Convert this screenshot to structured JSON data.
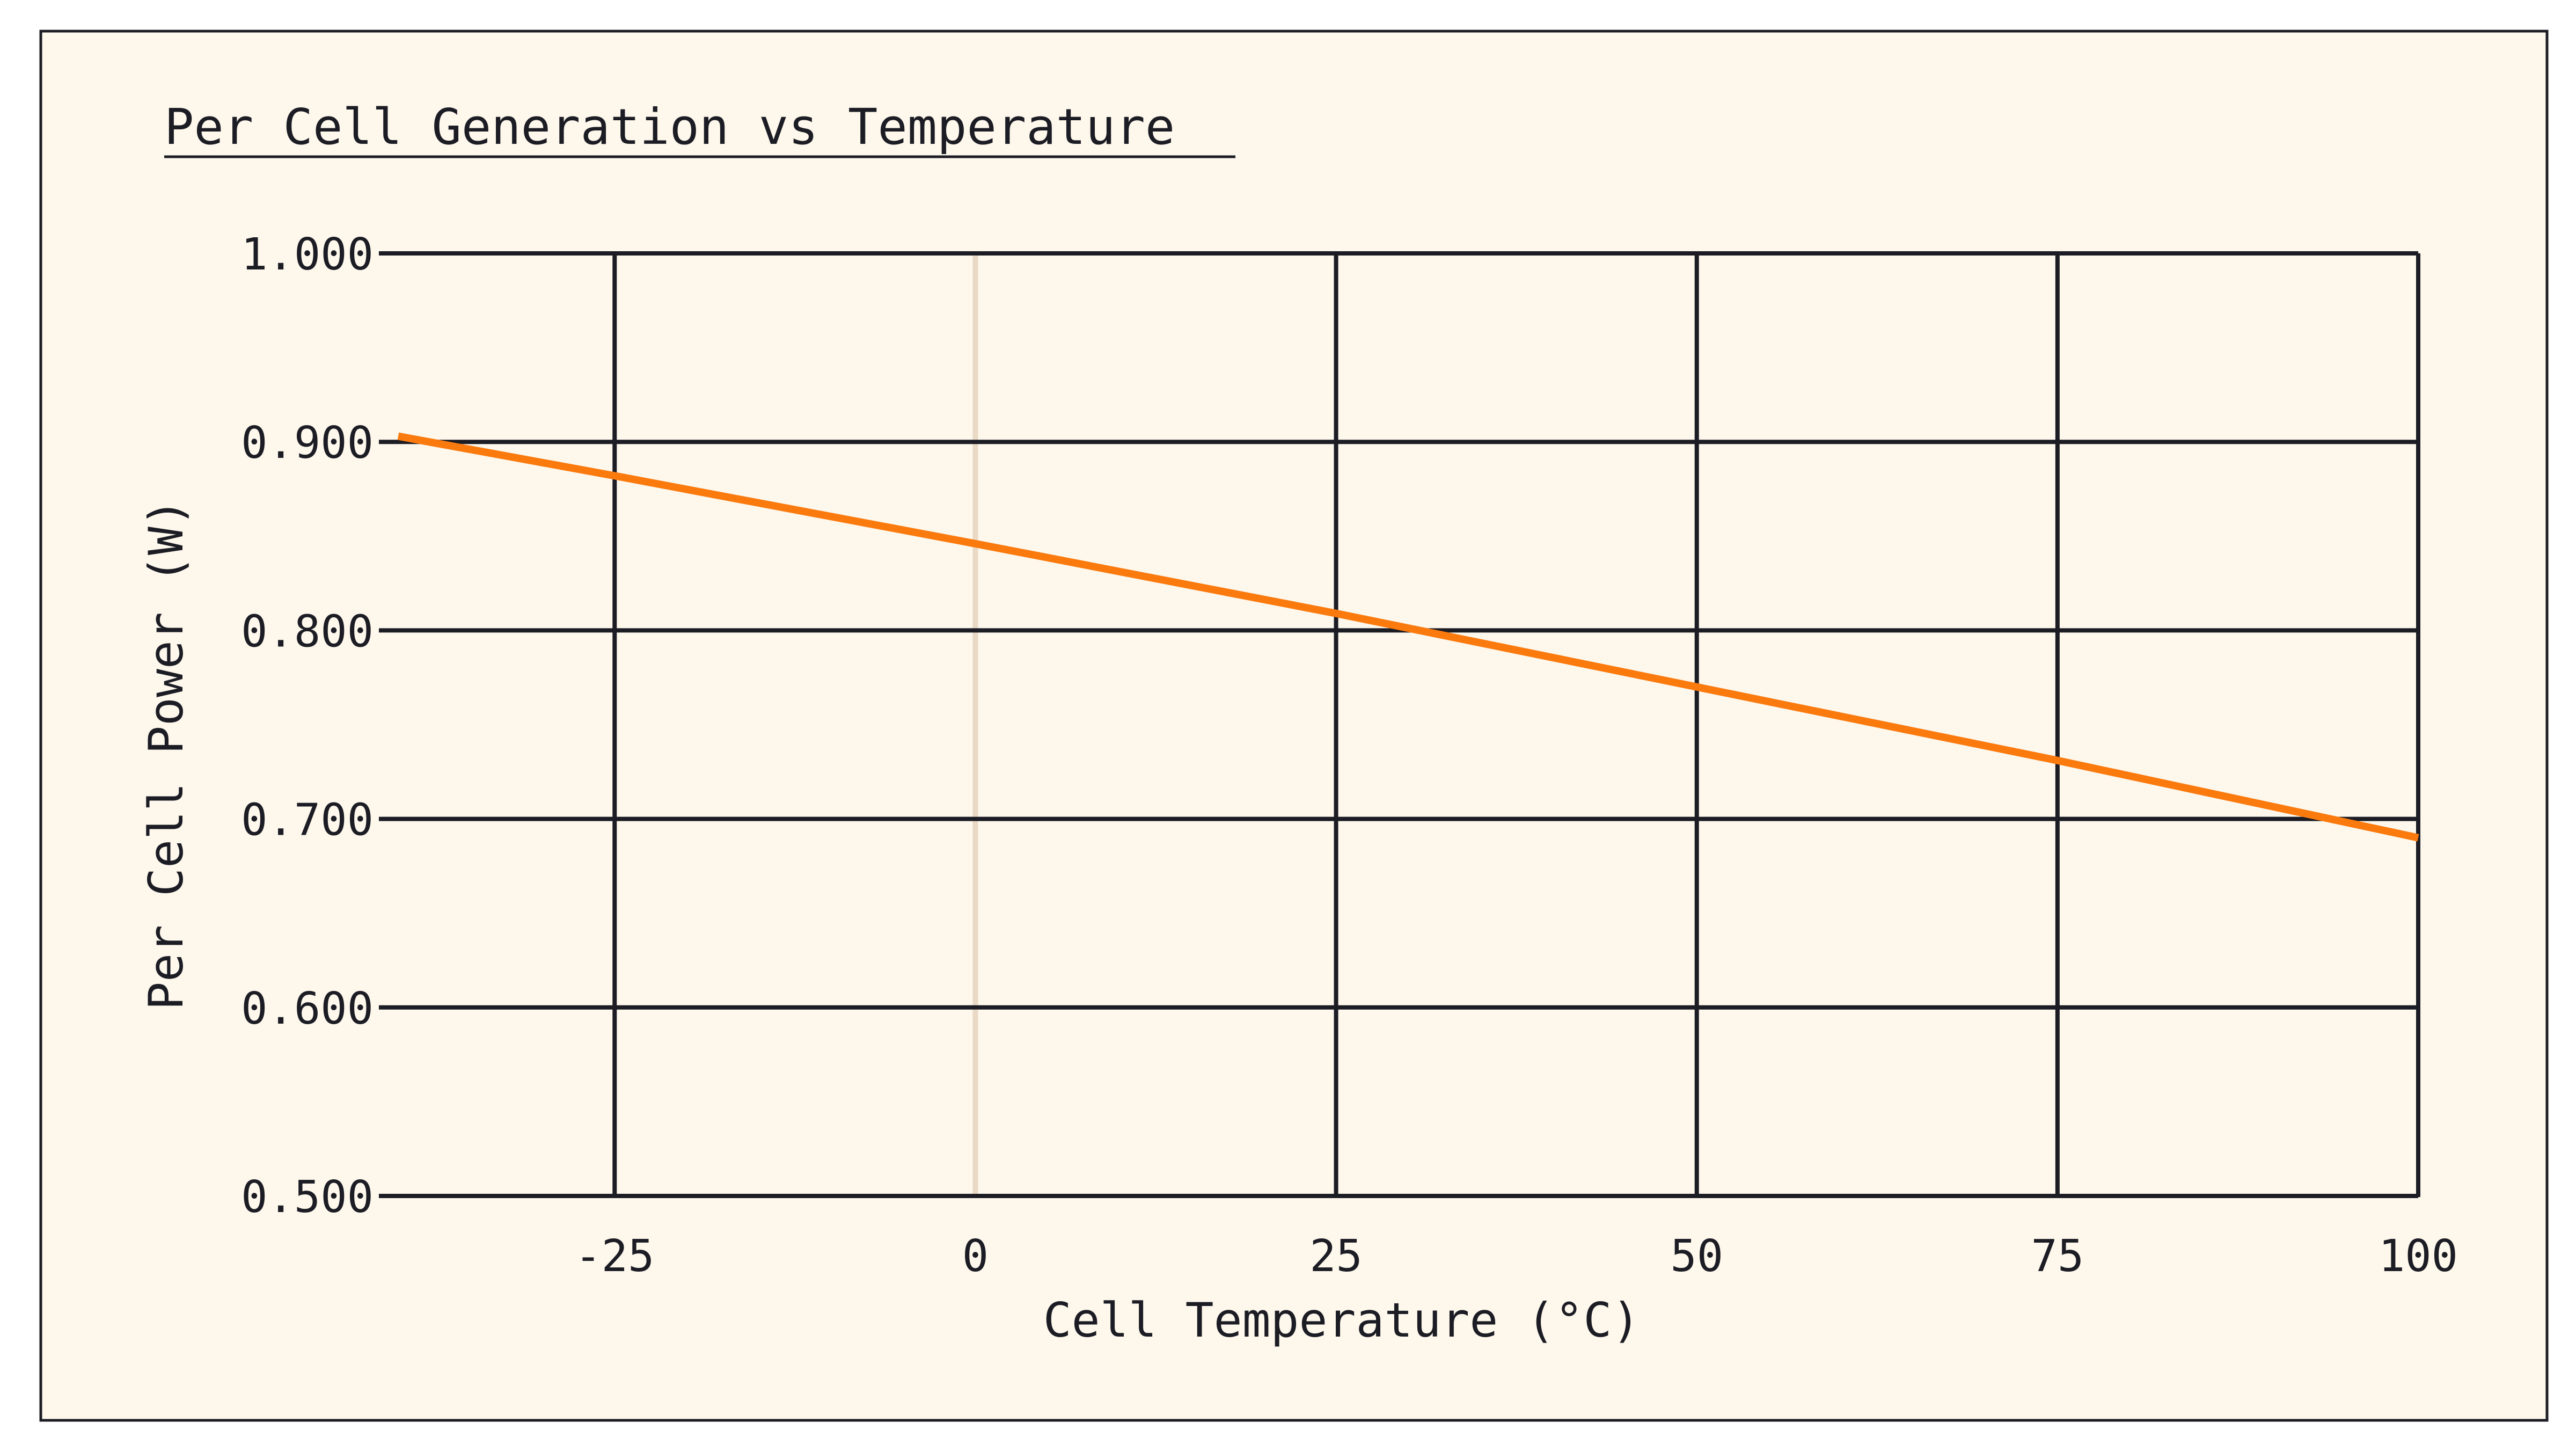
{
  "colors": {
    "background": "#fdf7ec",
    "frame": "#1c1c24",
    "grid": "#1c1c24",
    "zero_line": "#ead9c4",
    "series_line": "#fb7a0e",
    "text": "#1c1c24"
  },
  "chart_data": {
    "type": "line",
    "title": "Per Cell Generation vs Temperature",
    "xlabel": "Cell Temperature (°C)",
    "ylabel": "Per Cell Power (W)",
    "xlim": [
      -40,
      100
    ],
    "ylim": [
      0.5,
      1.0
    ],
    "xticks": [
      -25,
      0,
      25,
      50,
      75,
      100
    ],
    "xtick_labels": [
      "-25",
      "0",
      "25",
      "50",
      "75",
      "100"
    ],
    "yticks": [
      0.5,
      0.6,
      0.7,
      0.8,
      0.9,
      1.0
    ],
    "ytick_labels": [
      "0.500",
      "0.600",
      "0.700",
      "0.800",
      "0.900",
      "1.000"
    ],
    "grid": true,
    "zero_reference_x": 0,
    "series": [
      {
        "x": [
          -40,
          -25,
          0,
          25,
          50,
          75,
          100
        ],
        "y": [
          0.903,
          0.882,
          0.846,
          0.809,
          0.77,
          0.731,
          0.69
        ]
      }
    ]
  }
}
